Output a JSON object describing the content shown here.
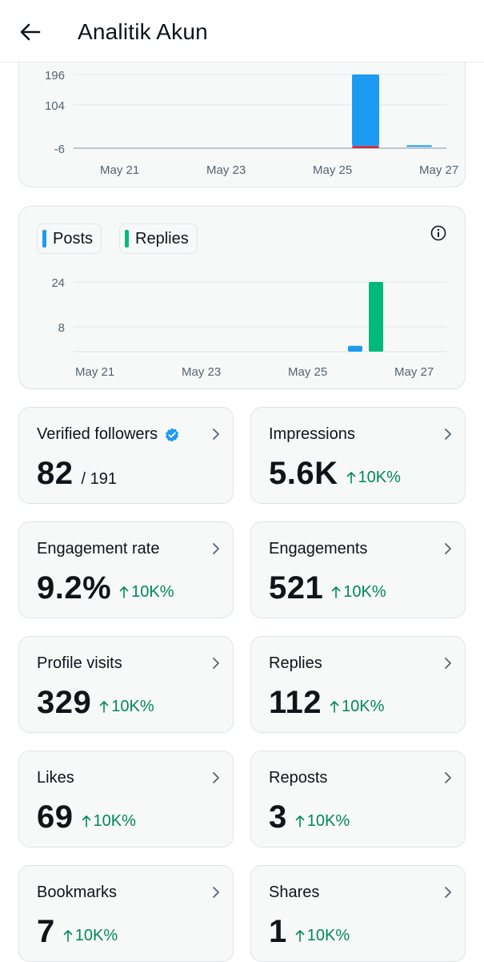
{
  "header": {
    "title": "Analitik Akun",
    "back_icon": "arrow-left-icon"
  },
  "chart1": {
    "chart_data": {
      "type": "bar",
      "x_ticks": [
        "May 21",
        "May 23",
        "May 25",
        "May 27"
      ],
      "y_ticks": [
        "196",
        "104",
        "-6"
      ],
      "series": [
        {
          "values": [
            0,
            0,
            0,
            0,
            0,
            0,
            196,
            2
          ],
          "color": "#1d9bf0"
        },
        {
          "values": [
            0,
            0,
            0,
            0,
            0,
            0,
            -6,
            0
          ],
          "color": "#d0263c"
        }
      ],
      "categories": [
        "May 20",
        "May 21",
        "May 22",
        "May 23",
        "May 24",
        "May 25",
        "May 26",
        "May 27"
      ],
      "ylim": [
        -6,
        196
      ]
    }
  },
  "chart2": {
    "legend": [
      {
        "label": "Posts",
        "color": "#1d9bf0"
      },
      {
        "label": "Replies",
        "color": "#00ba7c"
      }
    ],
    "info_icon": "info-icon",
    "chart_data": {
      "type": "bar",
      "x_ticks": [
        "May 21",
        "May 23",
        "May 25",
        "May 27"
      ],
      "y_ticks": [
        "24",
        "8"
      ],
      "categories": [
        "May 26"
      ],
      "series": [
        {
          "name": "Posts",
          "values": [
            2
          ]
        },
        {
          "name": "Replies",
          "values": [
            24
          ]
        }
      ],
      "ylim": [
        0,
        28
      ]
    }
  },
  "cards": [
    {
      "label": "Verified followers",
      "value": "82",
      "sub": "/ 191",
      "verified": true
    },
    {
      "label": "Impressions",
      "value": "5.6K",
      "change": "10K%"
    },
    {
      "label": "Engagement rate",
      "value": "9.2%",
      "change": "10K%"
    },
    {
      "label": "Engagements",
      "value": "521",
      "change": "10K%"
    },
    {
      "label": "Profile visits",
      "value": "329",
      "change": "10K%"
    },
    {
      "label": "Replies",
      "value": "112",
      "change": "10K%"
    },
    {
      "label": "Likes",
      "value": "69",
      "change": "10K%"
    },
    {
      "label": "Reposts",
      "value": "3",
      "change": "10K%"
    },
    {
      "label": "Bookmarks",
      "value": "7",
      "change": "10K%"
    },
    {
      "label": "Shares",
      "value": "1",
      "change": "10K%"
    }
  ]
}
